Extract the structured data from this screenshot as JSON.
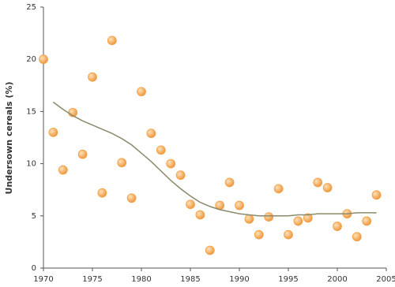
{
  "chart_data": {
    "type": "scatter",
    "y_label": "Undersown cereals (%)",
    "x": [
      1970,
      1971,
      1972,
      1973,
      1974,
      1975,
      1976,
      1977,
      1978,
      1979,
      1980,
      1981,
      1982,
      1983,
      1984,
      1985,
      1986,
      1987,
      1988,
      1989,
      1990,
      1991,
      1992,
      1993,
      1994,
      1995,
      1996,
      1997,
      1998,
      1999,
      2000,
      2001,
      2002,
      2003,
      2004
    ],
    "series": [
      {
        "mode": "markers",
        "color": "#f2a24a",
        "values": [
          20.0,
          13.0,
          9.4,
          14.9,
          10.9,
          18.3,
          7.2,
          21.8,
          10.1,
          6.7,
          16.9,
          12.9,
          11.3,
          10.0,
          8.9,
          6.1,
          5.1,
          1.7,
          6.0,
          8.2,
          6.0,
          4.7,
          3.2,
          4.9,
          7.6,
          3.2,
          4.5,
          4.8,
          8.2,
          7.7,
          4.0,
          5.2,
          3.0,
          4.5,
          7.0
        ]
      },
      {
        "mode": "line",
        "color": "#8c8a6a",
        "values": [
          null,
          15.9,
          15.2,
          14.6,
          14.1,
          13.7,
          13.3,
          12.9,
          12.4,
          11.8,
          11.0,
          10.2,
          9.3,
          8.4,
          7.6,
          6.9,
          6.3,
          5.9,
          5.6,
          5.4,
          5.2,
          5.1,
          5.0,
          5.0,
          5.0,
          5.0,
          5.1,
          5.1,
          5.2,
          5.2,
          5.2,
          5.2,
          5.3,
          5.3,
          5.3
        ]
      }
    ],
    "xlim": [
      1970,
      2005
    ],
    "xticks": [
      1970,
      1975,
      1980,
      1985,
      1990,
      1995,
      2000,
      2005
    ],
    "ylim": [
      0,
      25
    ],
    "yticks": [
      0,
      5,
      10,
      15,
      20,
      25
    ]
  }
}
